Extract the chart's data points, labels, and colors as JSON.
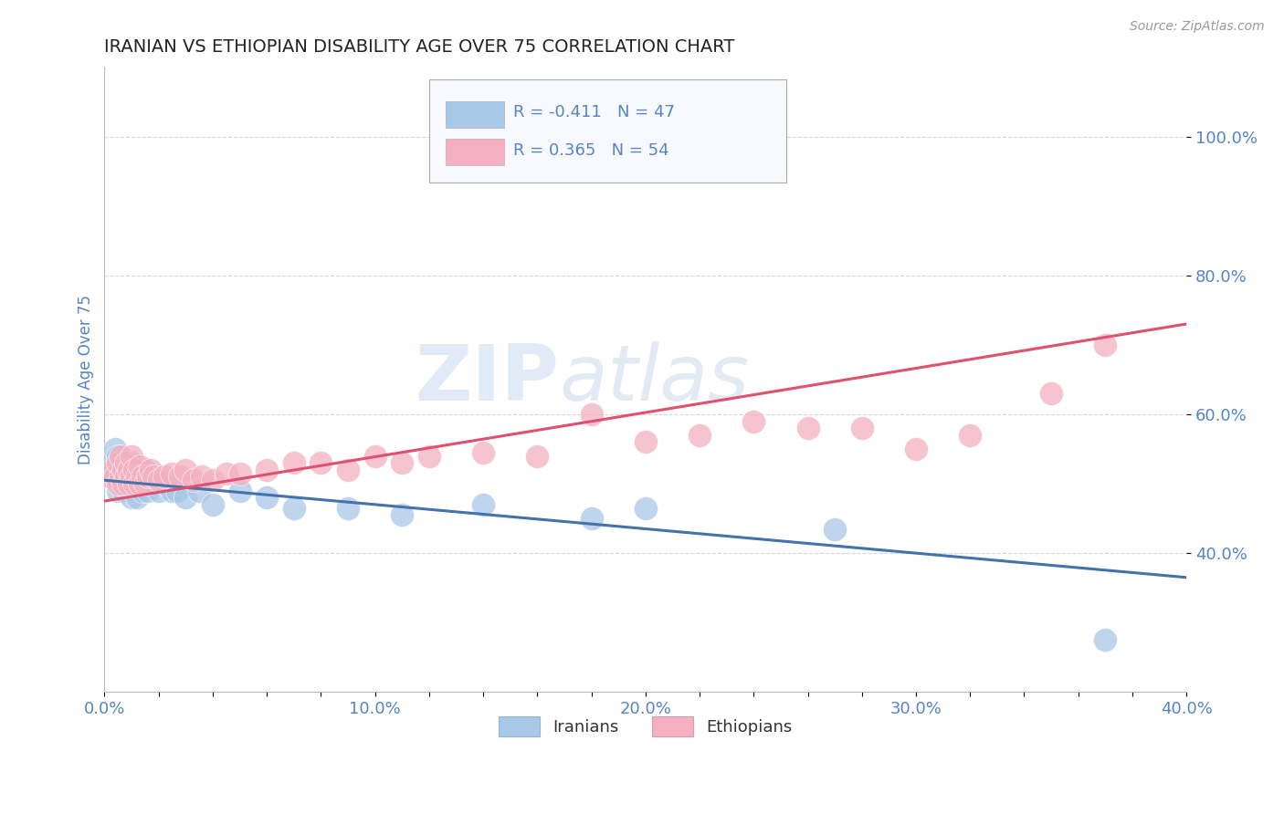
{
  "title": "IRANIAN VS ETHIOPIAN DISABILITY AGE OVER 75 CORRELATION CHART",
  "source": "Source: ZipAtlas.com",
  "ylabel_label": "Disability Age Over 75",
  "xmin": 0.0,
  "xmax": 0.4,
  "ymin": 0.2,
  "ymax": 1.1,
  "ytick_labels": [
    "40.0%",
    "60.0%",
    "80.0%",
    "100.0%"
  ],
  "ytick_values": [
    0.4,
    0.6,
    0.8,
    1.0
  ],
  "xtick_labels": [
    "0.0%",
    "",
    "",
    "",
    "",
    "10.0%",
    "",
    "",
    "",
    "",
    "20.0%",
    "",
    "",
    "",
    "",
    "30.0%",
    "",
    "",
    "",
    "",
    "40.0%"
  ],
  "xtick_values": [
    0.0,
    0.02,
    0.04,
    0.06,
    0.08,
    0.1,
    0.12,
    0.14,
    0.16,
    0.18,
    0.2,
    0.22,
    0.24,
    0.26,
    0.28,
    0.3,
    0.32,
    0.34,
    0.36,
    0.38,
    0.4
  ],
  "iranian_color": "#a8c8e8",
  "ethiopian_color": "#f4b0c0",
  "iranian_line_color": "#4472aa",
  "ethiopian_line_color": "#e05070",
  "iranian_R": -0.411,
  "iranian_N": 47,
  "ethiopian_R": 0.365,
  "ethiopian_N": 54,
  "watermark_zip": "ZIP",
  "watermark_atlas": "atlas",
  "background_color": "#ffffff",
  "grid_color": "#cccccc",
  "title_color": "#222222",
  "tick_label_color": "#5585c5",
  "iranians_x": [
    0.002,
    0.003,
    0.004,
    0.004,
    0.005,
    0.005,
    0.005,
    0.006,
    0.006,
    0.007,
    0.007,
    0.008,
    0.008,
    0.009,
    0.009,
    0.01,
    0.01,
    0.01,
    0.011,
    0.011,
    0.012,
    0.012,
    0.013,
    0.013,
    0.014,
    0.015,
    0.015,
    0.016,
    0.017,
    0.018,
    0.02,
    0.022,
    0.025,
    0.027,
    0.03,
    0.035,
    0.04,
    0.05,
    0.06,
    0.07,
    0.09,
    0.11,
    0.14,
    0.18,
    0.2,
    0.27,
    0.37
  ],
  "iranians_y": [
    0.51,
    0.53,
    0.52,
    0.55,
    0.49,
    0.51,
    0.54,
    0.5,
    0.53,
    0.49,
    0.515,
    0.5,
    0.525,
    0.49,
    0.51,
    0.48,
    0.5,
    0.53,
    0.49,
    0.51,
    0.48,
    0.51,
    0.5,
    0.52,
    0.49,
    0.5,
    0.52,
    0.49,
    0.51,
    0.5,
    0.49,
    0.5,
    0.49,
    0.49,
    0.48,
    0.49,
    0.47,
    0.49,
    0.48,
    0.465,
    0.465,
    0.455,
    0.47,
    0.45,
    0.465,
    0.435,
    0.275
  ],
  "ethiopians_x": [
    0.002,
    0.003,
    0.004,
    0.005,
    0.005,
    0.006,
    0.006,
    0.007,
    0.007,
    0.008,
    0.008,
    0.009,
    0.009,
    0.01,
    0.01,
    0.011,
    0.011,
    0.012,
    0.013,
    0.013,
    0.014,
    0.015,
    0.016,
    0.017,
    0.018,
    0.02,
    0.022,
    0.025,
    0.028,
    0.03,
    0.033,
    0.036,
    0.04,
    0.045,
    0.05,
    0.06,
    0.07,
    0.08,
    0.09,
    0.1,
    0.11,
    0.12,
    0.14,
    0.16,
    0.18,
    0.2,
    0.22,
    0.24,
    0.26,
    0.28,
    0.3,
    0.32,
    0.35,
    0.37
  ],
  "ethiopians_y": [
    0.51,
    0.52,
    0.51,
    0.5,
    0.53,
    0.51,
    0.54,
    0.5,
    0.52,
    0.51,
    0.53,
    0.5,
    0.52,
    0.51,
    0.54,
    0.5,
    0.52,
    0.51,
    0.5,
    0.525,
    0.51,
    0.5,
    0.51,
    0.52,
    0.51,
    0.505,
    0.51,
    0.515,
    0.51,
    0.52,
    0.505,
    0.51,
    0.505,
    0.515,
    0.515,
    0.52,
    0.53,
    0.53,
    0.52,
    0.54,
    0.53,
    0.54,
    0.545,
    0.54,
    0.6,
    0.56,
    0.57,
    0.59,
    0.58,
    0.58,
    0.55,
    0.57,
    0.63,
    0.7
  ]
}
